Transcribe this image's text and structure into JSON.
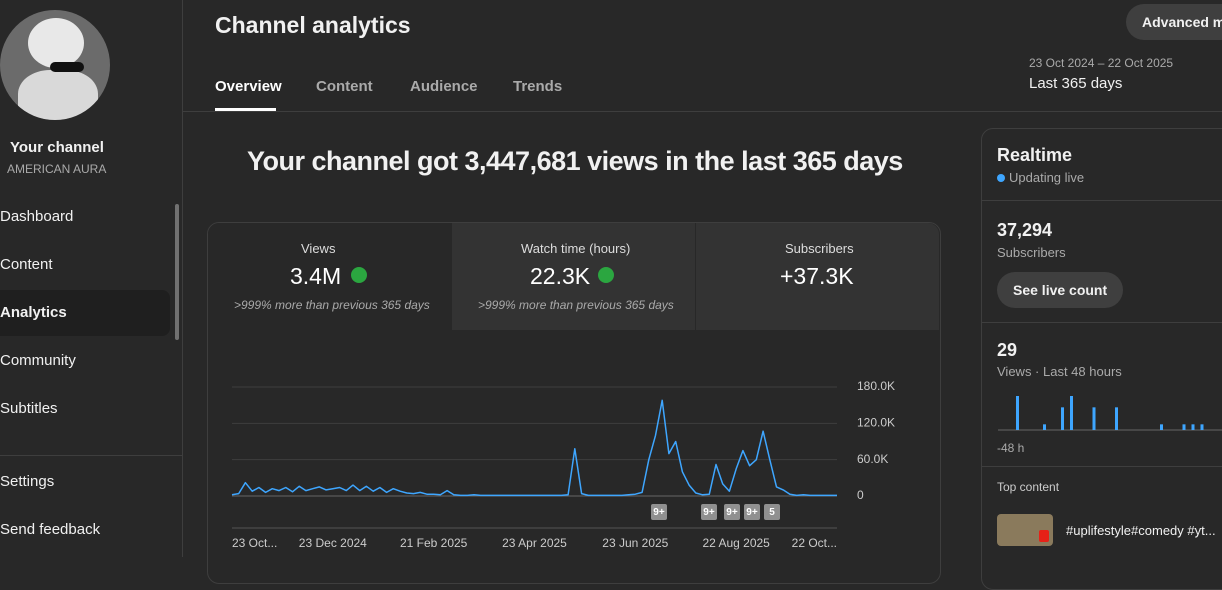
{
  "sidebar": {
    "channel_label": "Your channel",
    "channel_name": "AMERICAN AURA",
    "nav": [
      "Dashboard",
      "Content",
      "Analytics",
      "Community",
      "Subtitles"
    ],
    "footer_nav": [
      "Settings",
      "Send feedback"
    ]
  },
  "header": {
    "title": "Channel analytics",
    "advanced_button": "Advanced mode",
    "tabs": [
      "Overview",
      "Content",
      "Audience",
      "Trends"
    ],
    "date_range": "23 Oct 2024 – 22 Oct 2025",
    "period": "Last 365 days"
  },
  "headline": "Your channel got 3,447,681 views in the last 365 days",
  "metrics": [
    {
      "label": "Views",
      "value": "3.4M",
      "change": ">999% more than previous 365 days"
    },
    {
      "label": "Watch time (hours)",
      "value": "22.3K",
      "change": ">999% more than previous 365 days"
    },
    {
      "label": "Subscribers",
      "value": "+37.3K"
    }
  ],
  "realtime": {
    "title": "Realtime",
    "status": "Updating live",
    "subscribers": "37,294",
    "subscribers_label": "Subscribers",
    "button": "See live count",
    "views": "29",
    "views_label": "Views · Last 48 hours",
    "axis_start": "-48 h",
    "top_content_label": "Top content",
    "top_content_item": "#uplifestyle#comedy #yt..."
  },
  "chart_data": [
    {
      "type": "line",
      "color": "#3ea6ff",
      "categories": [
        "23 Oct...",
        null,
        null,
        null,
        null,
        null,
        null,
        null,
        null,
        null,
        null,
        null,
        null,
        null,
        null,
        "23 Dec 2024",
        null,
        null,
        null,
        null,
        null,
        null,
        null,
        null,
        null,
        null,
        null,
        null,
        null,
        null,
        "21 Feb 2025",
        null,
        null,
        null,
        null,
        null,
        null,
        null,
        null,
        null,
        null,
        null,
        null,
        null,
        null,
        "23 Apr 2025",
        null,
        null,
        null,
        null,
        null,
        null,
        null,
        null,
        null,
        null,
        null,
        null,
        null,
        null,
        "23 Jun 2025",
        null,
        null,
        null,
        null,
        null,
        null,
        null,
        null,
        null,
        null,
        null,
        null,
        null,
        null,
        "22 Aug 2025",
        null,
        null,
        null,
        null,
        null,
        null,
        null,
        null,
        null,
        null,
        null,
        null,
        null,
        null,
        "22 Oct..."
      ],
      "values": [
        2000,
        4000,
        22000,
        8000,
        14000,
        6000,
        12000,
        9000,
        14000,
        7000,
        16000,
        9000,
        12000,
        15000,
        10000,
        12000,
        14000,
        9000,
        18000,
        9000,
        16000,
        8000,
        14000,
        6000,
        12000,
        8000,
        5000,
        4000,
        6000,
        3000,
        3000,
        2000,
        9000,
        2000,
        1000,
        1000,
        2000,
        1000,
        1000,
        1000,
        1000,
        1000,
        1000,
        1000,
        1000,
        1000,
        1000,
        1000,
        1000,
        1000,
        2000,
        78000,
        4000,
        1000,
        1000,
        1000,
        1000,
        1000,
        1000,
        2000,
        3000,
        6000,
        60000,
        100000,
        158000,
        70000,
        90000,
        40000,
        18000,
        5000,
        2000,
        3000,
        52000,
        20000,
        8000,
        45000,
        75000,
        50000,
        60000,
        107000,
        60000,
        15000,
        10000,
        3000,
        1000,
        2000,
        1000,
        1000,
        1000,
        1000,
        1000
      ],
      "ylim": [
        0,
        180000
      ],
      "yticks": [
        0,
        {
          "value": 60000,
          "label": "60.0K"
        },
        {
          "value": 120000,
          "label": "120.0K"
        },
        {
          "value": 180000,
          "label": "180.0K"
        }
      ],
      "grid": true,
      "annotations": [
        "9+",
        "9+",
        "9+",
        "9+",
        "5"
      ]
    },
    {
      "type": "bar",
      "color": "#3ea6ff",
      "values": [
        0,
        0,
        6,
        0,
        0,
        0,
        0,
        0,
        1,
        0,
        0,
        0,
        4,
        0,
        6,
        0,
        0,
        0,
        0,
        4,
        0,
        0,
        0,
        0,
        4,
        0,
        0,
        0,
        0,
        0,
        0,
        0,
        0,
        0,
        1,
        0,
        0,
        0,
        0,
        1,
        0,
        1,
        0,
        1,
        0,
        0,
        0,
        0
      ]
    }
  ]
}
